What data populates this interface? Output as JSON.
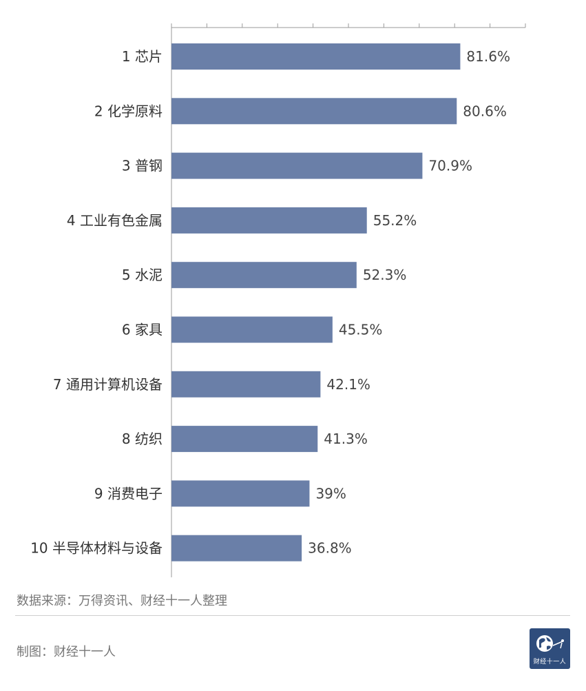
{
  "chart_data": {
    "type": "bar",
    "orientation": "horizontal",
    "categories": [
      "1 芯片",
      "2 化学原料",
      "3 普钢",
      "4 工业有色金属",
      "5 水泥",
      "6 家具",
      "7 通用计算机设备",
      "8 纺织",
      "9 消费电子",
      "10 半导体材料与设备"
    ],
    "values": [
      81.6,
      80.6,
      70.9,
      55.2,
      52.3,
      45.5,
      42.1,
      41.3,
      39,
      36.8
    ],
    "value_labels": [
      "81.6%",
      "80.6%",
      "70.9%",
      "55.2%",
      "52.3%",
      "45.5%",
      "42.1%",
      "41.3%",
      "39%",
      "36.8%"
    ],
    "xlim": [
      0,
      100
    ],
    "x_ticks": [
      0,
      10,
      20,
      30,
      40,
      50,
      60,
      70,
      80,
      90,
      100
    ],
    "tick_labels_shown": false,
    "grid": false,
    "legend": "none",
    "bar_color": "#6a7fa8",
    "title": "",
    "xlabel": "",
    "ylabel": ""
  },
  "footer": {
    "source": "数据来源：万得资讯、财经十一人整理",
    "credit": "制图：财经十一人",
    "logo_text": "财经十一人",
    "logo_color": "#2f4d7c"
  }
}
